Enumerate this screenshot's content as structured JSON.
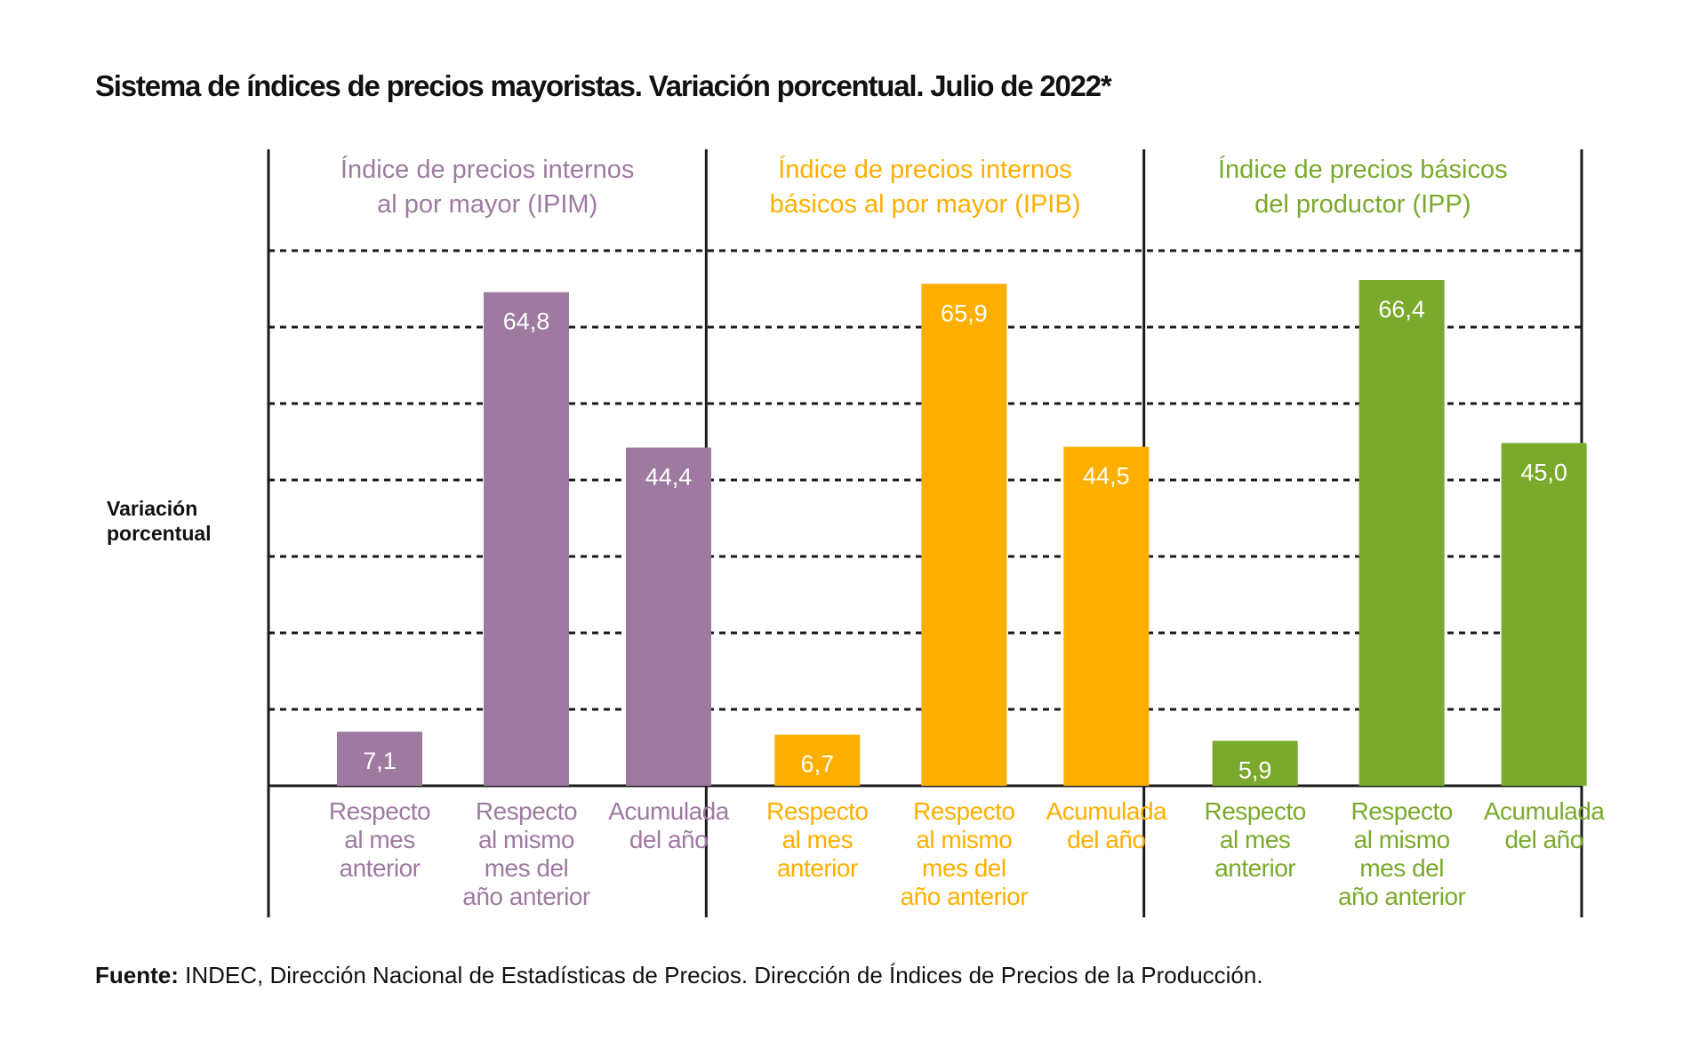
{
  "title": "Sistema de índices de precios mayoristas. Variación porcentual. Julio de 2022*",
  "y_axis_label": [
    "Variación",
    "porcentual"
  ],
  "footer": {
    "label": "Fuente:",
    "text": " INDEC, Dirección Nacional de Estadísticas de Precios. Dirección de Índices de Precios de la Producción."
  },
  "chart_data": {
    "type": "bar",
    "ylim": [
      0,
      70
    ],
    "grid": "dashed horizontal",
    "categories": [
      [
        "Respecto",
        "al mes",
        "anterior"
      ],
      [
        "Respecto",
        "al mismo",
        "mes del",
        "año anterior"
      ],
      [
        "Acumulada",
        "del año"
      ]
    ],
    "panels": [
      {
        "title": [
          "Índice de precios internos",
          "al por mayor (IPIM)"
        ],
        "color": "#9e7aa0",
        "values": [
          7.1,
          64.8,
          44.4
        ],
        "value_labels": [
          "7,1",
          "64,8",
          "44,4"
        ]
      },
      {
        "title": [
          "Índice de precios internos",
          "básicos al por mayor (IPIB)"
        ],
        "color": "#fdaf00",
        "values": [
          6.7,
          65.9,
          44.5
        ],
        "value_labels": [
          "6,7",
          "65,9",
          "44,5"
        ]
      },
      {
        "title": [
          "Índice de precios básicos",
          "del productor (IPP)"
        ],
        "color": "#7aaa2c",
        "values": [
          5.9,
          66.4,
          45.0
        ],
        "value_labels": [
          "5,9",
          "66,4",
          "45,0"
        ]
      }
    ]
  }
}
